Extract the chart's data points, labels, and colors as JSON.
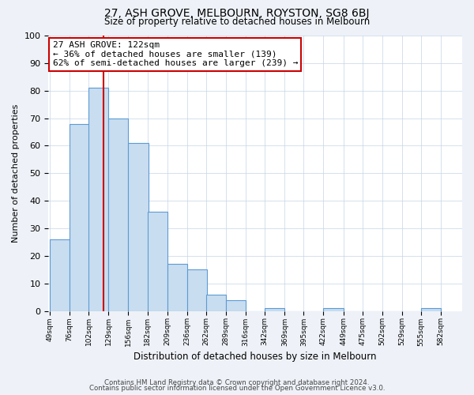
{
  "title": "27, ASH GROVE, MELBOURN, ROYSTON, SG8 6BJ",
  "subtitle": "Size of property relative to detached houses in Melbourn",
  "xlabel": "Distribution of detached houses by size in Melbourn",
  "ylabel": "Number of detached properties",
  "footer_line1": "Contains HM Land Registry data © Crown copyright and database right 2024.",
  "footer_line2": "Contains public sector information licensed under the Open Government Licence v3.0.",
  "bar_edges": [
    49,
    76,
    102,
    129,
    156,
    182,
    209,
    236,
    262,
    289,
    316,
    342,
    369,
    395,
    422,
    449,
    475,
    502,
    529,
    555,
    582
  ],
  "bar_heights": [
    26,
    68,
    81,
    70,
    61,
    36,
    17,
    15,
    6,
    4,
    0,
    1,
    0,
    0,
    1,
    0,
    0,
    0,
    0,
    1
  ],
  "bar_color": "#c9ddf0",
  "bar_edge_color": "#5b9bd5",
  "ylim": [
    0,
    100
  ],
  "yticks": [
    0,
    10,
    20,
    30,
    40,
    50,
    60,
    70,
    80,
    90,
    100
  ],
  "property_size": 122,
  "vline_color": "#cc0000",
  "annotation_line1": "27 ASH GROVE: 122sqm",
  "annotation_line2": "← 36% of detached houses are smaller (139)",
  "annotation_line3": "62% of semi-detached houses are larger (239) →",
  "annotation_box_color": "#ffffff",
  "annotation_box_edge_color": "#cc0000",
  "bg_color": "#eef2f8",
  "plot_bg_color": "#ffffff",
  "grid_color": "#c5d5e8"
}
